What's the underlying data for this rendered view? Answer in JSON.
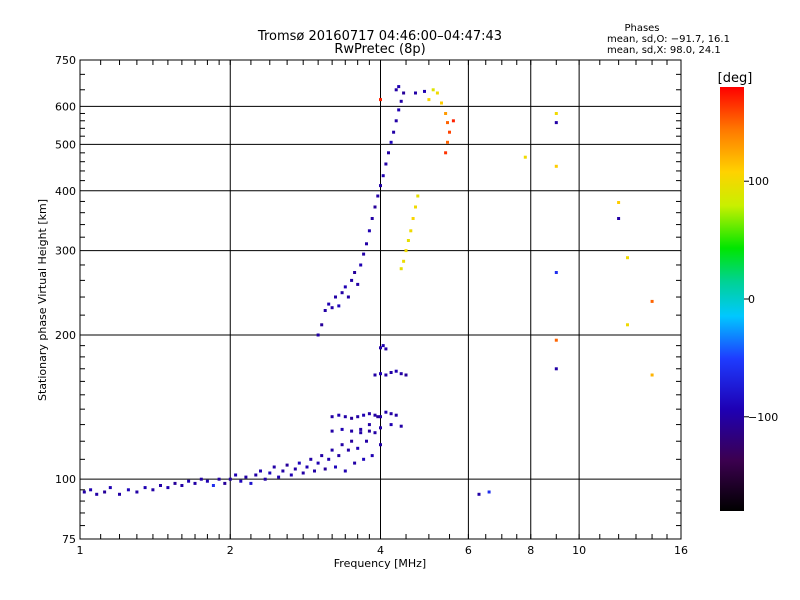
{
  "chart_data": {
    "type": "scatter",
    "title": "Tromsø 20160717 04:46:00–04:47:43",
    "subtitle": "RwPretec (8p)",
    "xlabel": "Frequency [MHz]",
    "ylabel": "Stationary phase Virtual Height [km]",
    "x_scale": "log",
    "y_scale": "log",
    "xlim": [
      1,
      16
    ],
    "ylim": [
      75,
      750
    ],
    "x_ticks": [
      "1",
      "2",
      "4",
      "6",
      "8",
      "10",
      "16"
    ],
    "x_tick_values": [
      1,
      2,
      4,
      6,
      8,
      10,
      16
    ],
    "y_ticks": [
      "75",
      "100",
      "200",
      "300",
      "400",
      "500",
      "600",
      "750"
    ],
    "y_tick_values": [
      75,
      100,
      200,
      300,
      400,
      500,
      600,
      750
    ],
    "grid": true,
    "phases_info": {
      "heading": "Phases",
      "line_o": "mean, sd,O: −91.7, 16.1",
      "line_x": "mean, sd,X:  98.0, 24.1"
    },
    "colorbar": {
      "label": "[deg]",
      "range": [
        -180,
        180
      ],
      "ticks": [
        "100",
        "0",
        "−100"
      ],
      "tick_values": [
        100,
        0,
        -100
      ]
    },
    "series": [
      {
        "values": [
          {
            "f": 1.02,
            "h": 94,
            "p": -100
          },
          {
            "f": 1.05,
            "h": 95,
            "p": -95
          },
          {
            "f": 1.08,
            "h": 93,
            "p": -100
          },
          {
            "f": 1.12,
            "h": 94,
            "p": -105
          },
          {
            "f": 1.15,
            "h": 96,
            "p": -95
          },
          {
            "f": 1.2,
            "h": 93,
            "p": -100
          },
          {
            "f": 1.25,
            "h": 95,
            "p": -90
          },
          {
            "f": 1.3,
            "h": 94,
            "p": -100
          },
          {
            "f": 1.35,
            "h": 96,
            "p": -95
          },
          {
            "f": 1.4,
            "h": 95,
            "p": -100
          },
          {
            "f": 1.45,
            "h": 97,
            "p": -100
          },
          {
            "f": 1.5,
            "h": 96,
            "p": -95
          },
          {
            "f": 1.55,
            "h": 98,
            "p": -105
          },
          {
            "f": 1.6,
            "h": 97,
            "p": -100
          },
          {
            "f": 1.65,
            "h": 99,
            "p": -95
          },
          {
            "f": 1.7,
            "h": 98,
            "p": -100
          },
          {
            "f": 1.75,
            "h": 100,
            "p": -100
          },
          {
            "f": 1.8,
            "h": 99,
            "p": -95
          },
          {
            "f": 1.85,
            "h": 97,
            "p": -60
          },
          {
            "f": 1.9,
            "h": 100,
            "p": -100
          },
          {
            "f": 1.95,
            "h": 98,
            "p": -105
          },
          {
            "f": 2.0,
            "h": 100,
            "p": -100
          },
          {
            "f": 2.05,
            "h": 102,
            "p": -95
          },
          {
            "f": 2.1,
            "h": 99,
            "p": -90
          },
          {
            "f": 2.15,
            "h": 101,
            "p": -100
          },
          {
            "f": 2.2,
            "h": 98,
            "p": -80
          },
          {
            "f": 2.25,
            "h": 102,
            "p": -100
          },
          {
            "f": 2.3,
            "h": 104,
            "p": -95
          },
          {
            "f": 2.35,
            "h": 100,
            "p": -100
          },
          {
            "f": 2.4,
            "h": 103,
            "p": -90
          },
          {
            "f": 2.45,
            "h": 106,
            "p": -100
          },
          {
            "f": 2.5,
            "h": 101,
            "p": -95
          },
          {
            "f": 2.55,
            "h": 104,
            "p": -100
          },
          {
            "f": 2.6,
            "h": 107,
            "p": -105
          },
          {
            "f": 2.65,
            "h": 102,
            "p": -95
          },
          {
            "f": 2.7,
            "h": 105,
            "p": -100
          },
          {
            "f": 2.75,
            "h": 108,
            "p": -90
          },
          {
            "f": 2.8,
            "h": 103,
            "p": -100
          },
          {
            "f": 2.85,
            "h": 106,
            "p": -95
          },
          {
            "f": 2.9,
            "h": 110,
            "p": -100
          },
          {
            "f": 2.95,
            "h": 104,
            "p": -100
          },
          {
            "f": 3.0,
            "h": 108,
            "p": -95
          },
          {
            "f": 3.05,
            "h": 112,
            "p": -100
          },
          {
            "f": 3.1,
            "h": 105,
            "p": -105
          },
          {
            "f": 3.15,
            "h": 110,
            "p": -95
          },
          {
            "f": 3.2,
            "h": 115,
            "p": -100
          },
          {
            "f": 3.25,
            "h": 106,
            "p": -90
          },
          {
            "f": 3.3,
            "h": 112,
            "p": -100
          },
          {
            "f": 3.35,
            "h": 118,
            "p": -100
          },
          {
            "f": 3.4,
            "h": 104,
            "p": -95
          },
          {
            "f": 3.45,
            "h": 115,
            "p": -100
          },
          {
            "f": 3.5,
            "h": 120,
            "p": -105
          },
          {
            "f": 3.55,
            "h": 108,
            "p": -100
          },
          {
            "f": 3.6,
            "h": 116,
            "p": -95
          },
          {
            "f": 3.65,
            "h": 125,
            "p": -100
          },
          {
            "f": 3.7,
            "h": 110,
            "p": -90
          },
          {
            "f": 3.75,
            "h": 120,
            "p": -100
          },
          {
            "f": 3.8,
            "h": 130,
            "p": -100
          },
          {
            "f": 3.85,
            "h": 112,
            "p": -95
          },
          {
            "f": 3.9,
            "h": 125,
            "p": -100
          },
          {
            "f": 3.95,
            "h": 135,
            "p": -105
          },
          {
            "f": 4.0,
            "h": 118,
            "p": -100
          },
          {
            "f": 3.2,
            "h": 135,
            "p": -100
          },
          {
            "f": 3.3,
            "h": 136,
            "p": -95
          },
          {
            "f": 3.4,
            "h": 135,
            "p": -100
          },
          {
            "f": 3.5,
            "h": 134,
            "p": -105
          },
          {
            "f": 3.6,
            "h": 135,
            "p": -100
          },
          {
            "f": 3.7,
            "h": 136,
            "p": -95
          },
          {
            "f": 3.8,
            "h": 137,
            "p": -100
          },
          {
            "f": 3.9,
            "h": 136,
            "p": -100
          },
          {
            "f": 4.0,
            "h": 135,
            "p": -100
          },
          {
            "f": 4.1,
            "h": 138,
            "p": -95
          },
          {
            "f": 4.2,
            "h": 137,
            "p": -100
          },
          {
            "f": 4.3,
            "h": 136,
            "p": -100
          },
          {
            "f": 3.2,
            "h": 126,
            "p": -100
          },
          {
            "f": 3.35,
            "h": 127,
            "p": -95
          },
          {
            "f": 3.5,
            "h": 126,
            "p": -100
          },
          {
            "f": 3.65,
            "h": 127,
            "p": -100
          },
          {
            "f": 3.8,
            "h": 126,
            "p": -105
          },
          {
            "f": 4.0,
            "h": 128,
            "p": -100
          },
          {
            "f": 4.2,
            "h": 130,
            "p": -95
          },
          {
            "f": 4.4,
            "h": 129,
            "p": -100
          },
          {
            "f": 3.9,
            "h": 165,
            "p": -100
          },
          {
            "f": 4.0,
            "h": 166,
            "p": -95
          },
          {
            "f": 4.1,
            "h": 165,
            "p": -100
          },
          {
            "f": 4.2,
            "h": 167,
            "p": -100
          },
          {
            "f": 4.3,
            "h": 168,
            "p": -95
          },
          {
            "f": 4.4,
            "h": 166,
            "p": -100
          },
          {
            "f": 4.5,
            "h": 165,
            "p": -105
          },
          {
            "f": 4.0,
            "h": 188,
            "p": -100
          },
          {
            "f": 4.05,
            "h": 190,
            "p": -95
          },
          {
            "f": 4.1,
            "h": 187,
            "p": -100
          },
          {
            "f": 3.0,
            "h": 200,
            "p": -100
          },
          {
            "f": 3.05,
            "h": 210,
            "p": -105
          },
          {
            "f": 3.1,
            "h": 225,
            "p": -100
          },
          {
            "f": 3.15,
            "h": 232,
            "p": -95
          },
          {
            "f": 3.2,
            "h": 228,
            "p": -100
          },
          {
            "f": 3.25,
            "h": 240,
            "p": -100
          },
          {
            "f": 3.3,
            "h": 230,
            "p": -90
          },
          {
            "f": 3.35,
            "h": 245,
            "p": -100
          },
          {
            "f": 3.4,
            "h": 252,
            "p": -95
          },
          {
            "f": 3.45,
            "h": 240,
            "p": -100
          },
          {
            "f": 3.5,
            "h": 260,
            "p": -100
          },
          {
            "f": 3.55,
            "h": 270,
            "p": -105
          },
          {
            "f": 3.6,
            "h": 255,
            "p": -100
          },
          {
            "f": 3.65,
            "h": 280,
            "p": -95
          },
          {
            "f": 3.7,
            "h": 295,
            "p": -100
          },
          {
            "f": 3.75,
            "h": 310,
            "p": -100
          },
          {
            "f": 3.8,
            "h": 330,
            "p": -95
          },
          {
            "f": 3.85,
            "h": 350,
            "p": -100
          },
          {
            "f": 3.9,
            "h": 370,
            "p": -105
          },
          {
            "f": 3.95,
            "h": 390,
            "p": -100
          },
          {
            "f": 4.0,
            "h": 410,
            "p": -100
          },
          {
            "f": 4.05,
            "h": 430,
            "p": -95
          },
          {
            "f": 4.1,
            "h": 455,
            "p": -100
          },
          {
            "f": 4.15,
            "h": 480,
            "p": -100
          },
          {
            "f": 4.2,
            "h": 505,
            "p": -90
          },
          {
            "f": 4.25,
            "h": 530,
            "p": -100
          },
          {
            "f": 4.3,
            "h": 560,
            "p": -100
          },
          {
            "f": 4.35,
            "h": 590,
            "p": -95
          },
          {
            "f": 4.4,
            "h": 615,
            "p": -100
          },
          {
            "f": 4.45,
            "h": 640,
            "p": -105
          },
          {
            "f": 4.3,
            "h": 650,
            "p": -100
          },
          {
            "f": 4.35,
            "h": 660,
            "p": -95
          },
          {
            "f": 4.7,
            "h": 640,
            "p": -100
          },
          {
            "f": 4.9,
            "h": 645,
            "p": -95
          },
          {
            "f": 6.3,
            "h": 93,
            "p": -100
          },
          {
            "f": 6.6,
            "h": 94,
            "p": -60
          },
          {
            "f": 9.0,
            "h": 555,
            "p": -100
          },
          {
            "f": 12.0,
            "h": 350,
            "p": -100
          },
          {
            "f": 9.0,
            "h": 170,
            "p": -100
          },
          {
            "f": 9.0,
            "h": 270,
            "p": -60
          }
        ]
      },
      {
        "values": [
          {
            "f": 4.4,
            "h": 275,
            "p": 95
          },
          {
            "f": 4.45,
            "h": 285,
            "p": 98
          },
          {
            "f": 4.5,
            "h": 300,
            "p": 100
          },
          {
            "f": 4.55,
            "h": 315,
            "p": 95
          },
          {
            "f": 4.6,
            "h": 330,
            "p": 100
          },
          {
            "f": 4.65,
            "h": 350,
            "p": 105
          },
          {
            "f": 4.7,
            "h": 370,
            "p": 100
          },
          {
            "f": 4.75,
            "h": 390,
            "p": 95
          },
          {
            "f": 5.2,
            "h": 640,
            "p": 100
          },
          {
            "f": 5.3,
            "h": 610,
            "p": 110
          },
          {
            "f": 5.4,
            "h": 580,
            "p": 130
          },
          {
            "f": 5.45,
            "h": 555,
            "p": 150
          },
          {
            "f": 5.5,
            "h": 530,
            "p": 160
          },
          {
            "f": 5.45,
            "h": 505,
            "p": 150
          },
          {
            "f": 5.4,
            "h": 480,
            "p": 165
          },
          {
            "f": 5.6,
            "h": 560,
            "p": 170
          },
          {
            "f": 5.0,
            "h": 620,
            "p": 105
          },
          {
            "f": 5.1,
            "h": 650,
            "p": 90
          },
          {
            "f": 7.8,
            "h": 470,
            "p": 100
          },
          {
            "f": 9.0,
            "h": 580,
            "p": 100
          },
          {
            "f": 9.0,
            "h": 450,
            "p": 110
          },
          {
            "f": 12.0,
            "h": 378,
            "p": 110
          },
          {
            "f": 12.5,
            "h": 290,
            "p": 100
          },
          {
            "f": 12.5,
            "h": 210,
            "p": 100
          },
          {
            "f": 14.0,
            "h": 235,
            "p": 150
          },
          {
            "f": 14.0,
            "h": 165,
            "p": 120
          },
          {
            "f": 9.0,
            "h": 195,
            "p": 150
          },
          {
            "f": 4.0,
            "h": 620,
            "p": 170
          }
        ]
      }
    ]
  }
}
